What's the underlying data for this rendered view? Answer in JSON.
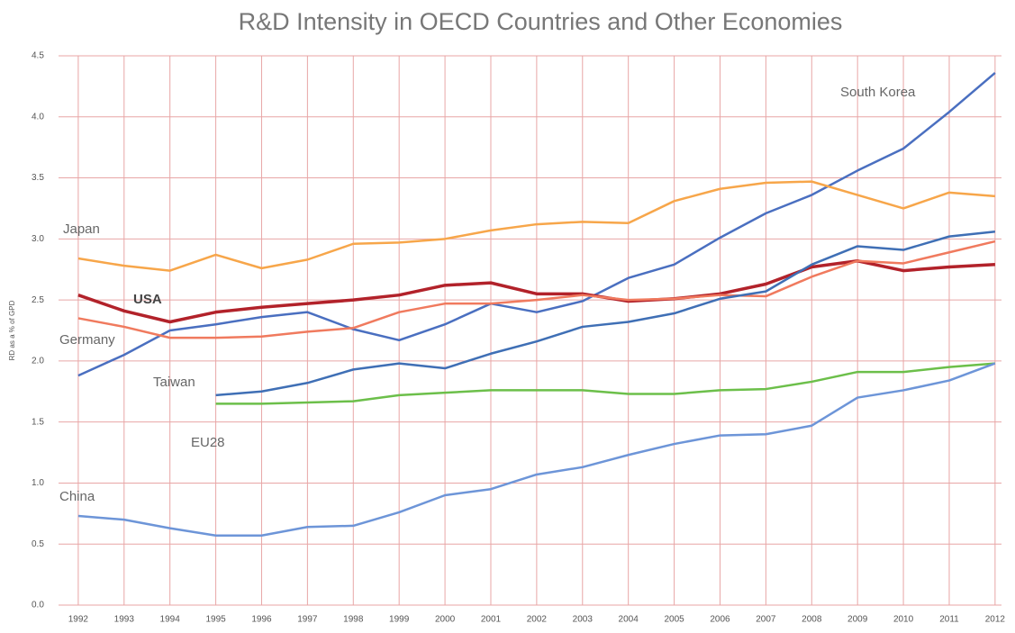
{
  "chart_data": {
    "type": "line",
    "title": "R&D Intensity in OECD Countries and Other Economies",
    "y_label": "RD as a % of GPD",
    "x": [
      1992,
      1993,
      1994,
      1995,
      1996,
      1997,
      1998,
      1999,
      2000,
      2001,
      2002,
      2003,
      2004,
      2005,
      2006,
      2007,
      2008,
      2009,
      2010,
      2011,
      2012
    ],
    "xlim": [
      1991.57,
      2012.14
    ],
    "xticks": [
      1992,
      1993,
      1994,
      1995,
      1996,
      1997,
      1998,
      1999,
      2000,
      2001,
      2002,
      2003,
      2004,
      2005,
      2006,
      2007,
      2008,
      2009,
      2010,
      2011,
      2012
    ],
    "ylim": [
      0,
      4.5
    ],
    "yticks": [
      {
        "value": 0,
        "label": "0.0"
      },
      0.5,
      {
        "value": 1,
        "label": "1.0"
      },
      1.5,
      {
        "value": 2,
        "label": "2.0"
      },
      2.5,
      {
        "value": 3,
        "label": "3.0"
      },
      3.5,
      {
        "value": 4,
        "label": "4.0"
      },
      4.5
    ],
    "grid": true,
    "series": [
      {
        "name": "South Korea",
        "color": "#4a6fc0",
        "values": [
          1.88,
          2.05,
          2.25,
          2.3,
          2.36,
          2.4,
          2.26,
          2.17,
          2.3,
          2.47,
          2.4,
          2.49,
          2.68,
          2.79,
          3.01,
          3.21,
          3.36,
          3.56,
          3.74,
          4.04,
          4.36
        ]
      },
      {
        "name": "Japan",
        "color": "#f7a64a",
        "values": [
          2.84,
          2.78,
          2.74,
          2.87,
          2.76,
          2.83,
          2.96,
          2.97,
          3.0,
          3.07,
          3.12,
          3.14,
          3.13,
          3.31,
          3.41,
          3.46,
          3.47,
          3.36,
          3.25,
          3.38,
          3.35
        ]
      },
      {
        "name": "USA",
        "color": "#b2222a",
        "values": [
          2.54,
          2.41,
          2.32,
          2.4,
          2.44,
          2.47,
          2.5,
          2.54,
          2.62,
          2.64,
          2.55,
          2.55,
          2.49,
          2.51,
          2.55,
          2.63,
          2.77,
          2.82,
          2.74,
          2.77,
          2.79
        ]
      },
      {
        "name": "Germany",
        "color": "#f07a5e",
        "values": [
          2.35,
          2.28,
          2.19,
          2.19,
          2.2,
          2.24,
          2.27,
          2.4,
          2.47,
          2.47,
          2.5,
          2.54,
          2.5,
          2.51,
          2.54,
          2.53,
          2.69,
          2.82,
          2.8,
          2.89,
          2.98
        ]
      },
      {
        "name": "Taiwan",
        "color": "#3f6fb5",
        "values": [
          null,
          null,
          null,
          1.72,
          1.75,
          1.82,
          1.93,
          1.98,
          1.94,
          2.06,
          2.16,
          2.28,
          2.32,
          2.39,
          2.51,
          2.57,
          2.79,
          2.94,
          2.91,
          3.02,
          3.06
        ]
      },
      {
        "name": "EU28",
        "color": "#6cbf4a",
        "values": [
          null,
          null,
          null,
          1.65,
          1.65,
          1.66,
          1.67,
          1.72,
          1.74,
          1.76,
          1.76,
          1.76,
          1.73,
          1.73,
          1.76,
          1.77,
          1.83,
          1.91,
          1.91,
          1.95,
          1.98
        ]
      },
      {
        "name": "China",
        "color": "#6d95d8",
        "values": [
          0.73,
          0.7,
          0.63,
          0.57,
          0.57,
          0.64,
          0.65,
          0.76,
          0.9,
          0.95,
          1.07,
          1.13,
          1.23,
          1.32,
          1.39,
          1.4,
          1.47,
          1.7,
          1.76,
          1.84,
          1.98
        ]
      }
    ]
  }
}
